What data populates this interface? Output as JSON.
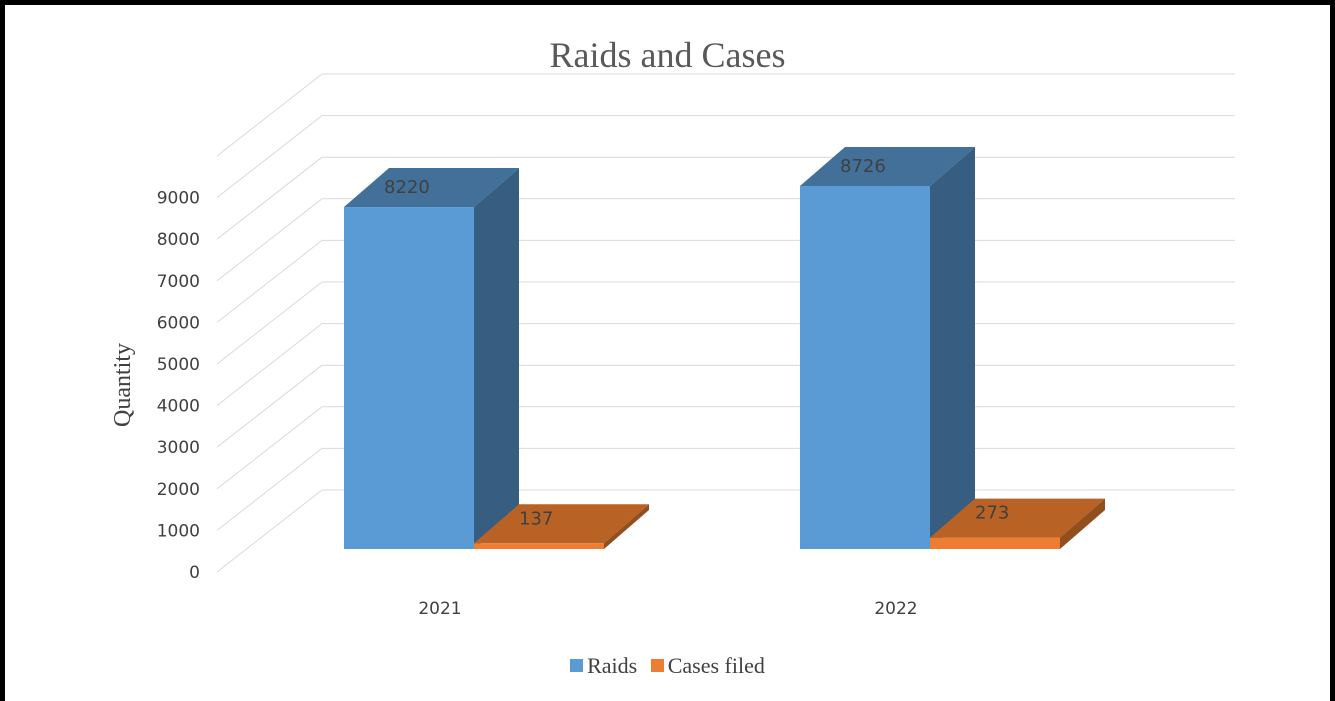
{
  "chart_data": {
    "type": "bar",
    "title": "Raids and Cases",
    "xlabel": "",
    "ylabel": "Quantity",
    "categories": [
      "2021",
      "2022"
    ],
    "series": [
      {
        "name": "Raids",
        "values": [
          8220,
          8726
        ],
        "color": "#5B9BD5"
      },
      {
        "name": "Cases filed",
        "values": [
          137,
          273
        ],
        "color": "#ED7D31"
      }
    ],
    "yticks": [
      "0",
      "1000",
      "2000",
      "3000",
      "4000",
      "5000",
      "6000",
      "7000",
      "8000",
      "9000"
    ],
    "ylim": [
      0,
      9000
    ],
    "grid": true,
    "three_d": true,
    "legend_position": "bottom"
  }
}
